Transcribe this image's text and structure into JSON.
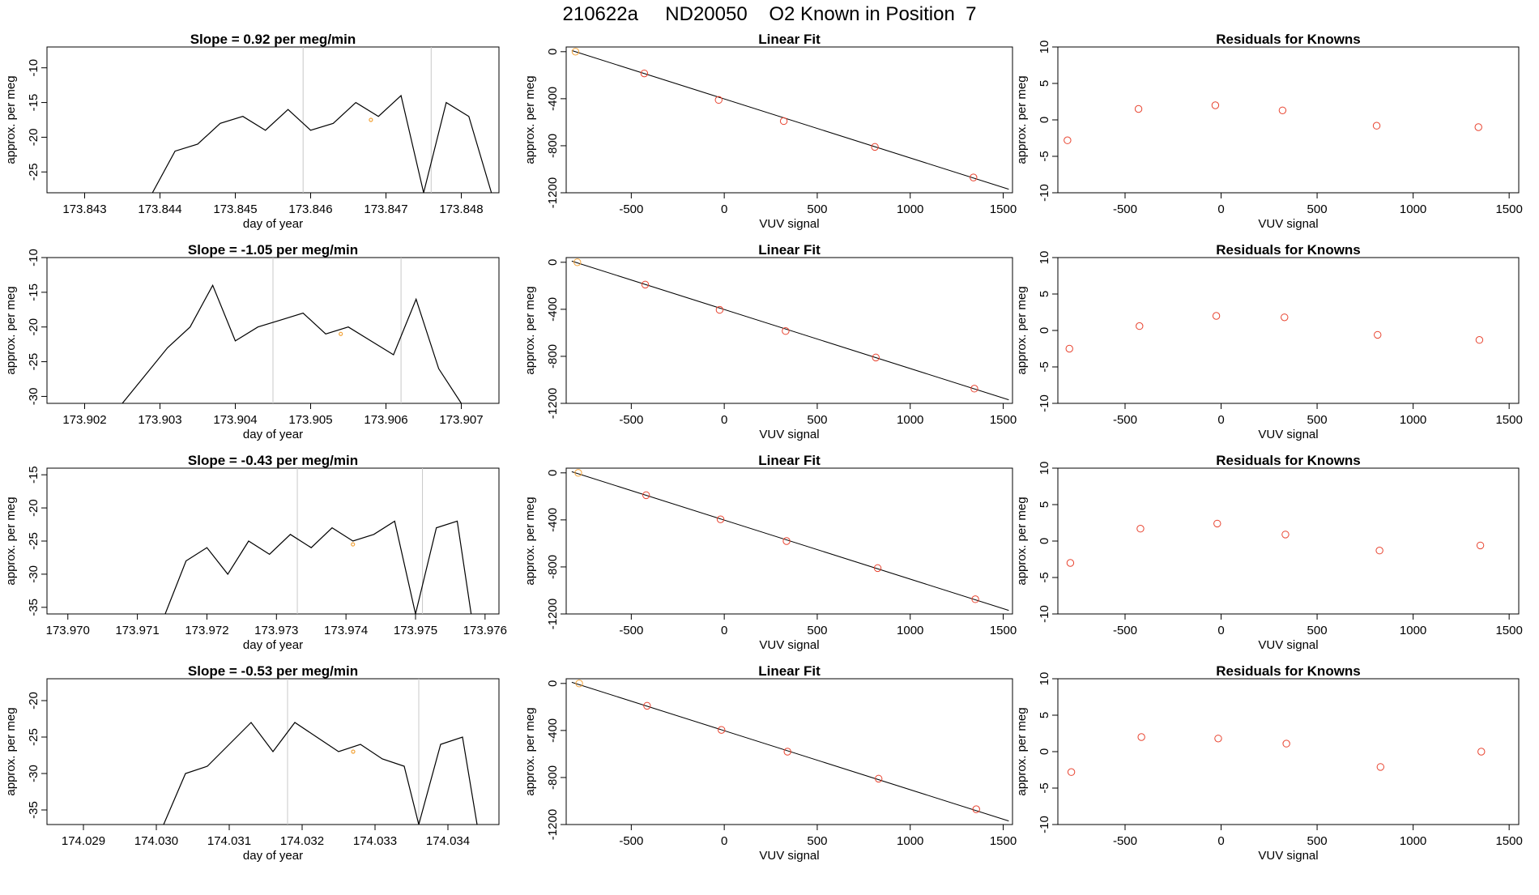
{
  "figure": {
    "title": "210622a     ND20050    O2 Known in Position  7"
  },
  "colors": {
    "trace": "#000000",
    "fit_line": "#000000",
    "marker": "#e8432f",
    "highlight": "#f2a33a",
    "vline": "#c8c8c8",
    "frame": "#000000"
  },
  "chart_data": [
    {
      "type": "line",
      "row": 0,
      "col": 0,
      "title": "Slope =  0.92  per meg/min",
      "xlabel": "day of year",
      "ylabel": "approx. per meg",
      "xlim": [
        173.8425,
        173.8485
      ],
      "ylim": [
        -28,
        -7
      ],
      "xticks": [
        173.843,
        173.844,
        173.845,
        173.846,
        173.847,
        173.848
      ],
      "xtick_labels": [
        "173.843",
        "173.844",
        "173.845",
        "173.846",
        "173.847",
        "173.848"
      ],
      "yticks": [
        -25,
        -20,
        -15,
        -10
      ],
      "vlines": [
        173.8459,
        173.8476
      ],
      "x": [
        173.8439,
        173.8442,
        173.8445,
        173.8448,
        173.8451,
        173.8454,
        173.8457,
        173.846,
        173.8463,
        173.8466,
        173.8469,
        173.8472,
        173.8475,
        173.8478,
        173.8481,
        173.8484
      ],
      "y": [
        -28,
        -22,
        -21,
        -18,
        -17,
        -19,
        -16,
        -19,
        -18,
        -15,
        -17,
        -14,
        -28,
        -15,
        -17,
        -28
      ],
      "highlight_point": [
        173.8468,
        -17.5
      ]
    },
    {
      "type": "scatter",
      "row": 0,
      "col": 1,
      "title": "Linear Fit",
      "xlabel": "VUV signal",
      "ylabel": "approx. per meg",
      "xlim": [
        -850,
        1550
      ],
      "ylim": [
        -1200,
        40
      ],
      "xticks": [
        -500,
        0,
        500,
        1000,
        1500
      ],
      "yticks": [
        0,
        -400,
        -800,
        -1200
      ],
      "x": [
        -800,
        -430,
        -30,
        320,
        810,
        1340
      ],
      "y": [
        0,
        -185,
        -410,
        -590,
        -810,
        -1070
      ],
      "fit_line": [
        [
          -820,
          10
        ],
        [
          1530,
          -1170
        ]
      ],
      "highlight_index": 0
    },
    {
      "type": "scatter",
      "row": 0,
      "col": 2,
      "title": "Residuals for Knowns",
      "xlabel": "VUV signal",
      "ylabel": "approx. per meg",
      "xlim": [
        -850,
        1550
      ],
      "ylim": [
        -10,
        10
      ],
      "xticks": [
        -500,
        0,
        500,
        1000,
        1500
      ],
      "yticks": [
        -10,
        -5,
        0,
        5,
        10
      ],
      "x": [
        -800,
        -430,
        -30,
        320,
        810,
        1340
      ],
      "y": [
        -2.8,
        1.5,
        2.0,
        1.3,
        -0.8,
        -1.0
      ]
    },
    {
      "type": "line",
      "row": 1,
      "col": 0,
      "title": "Slope =  -1.05  per meg/min",
      "xlabel": "day of year",
      "ylabel": "approx. per meg",
      "xlim": [
        173.9015,
        173.9075
      ],
      "ylim": [
        -31,
        -10
      ],
      "xticks": [
        173.902,
        173.903,
        173.904,
        173.905,
        173.906,
        173.907
      ],
      "xtick_labels": [
        "173.902",
        "173.903",
        "173.904",
        "173.905",
        "173.906",
        "173.907"
      ],
      "yticks": [
        -30,
        -25,
        -20,
        -15,
        -10
      ],
      "vlines": [
        173.9045,
        173.9062
      ],
      "x": [
        173.9025,
        173.9028,
        173.9031,
        173.9034,
        173.9037,
        173.904,
        173.9043,
        173.9046,
        173.9049,
        173.9052,
        173.9055,
        173.9058,
        173.9061,
        173.9064,
        173.9067,
        173.907
      ],
      "y": [
        -31,
        -27,
        -23,
        -20,
        -14,
        -22,
        -20,
        -19,
        -18,
        -21,
        -20,
        -22,
        -24,
        -16,
        -26,
        -31
      ],
      "highlight_point": [
        173.9054,
        -21
      ]
    },
    {
      "type": "scatter",
      "row": 1,
      "col": 1,
      "title": "Linear Fit",
      "xlabel": "VUV signal",
      "ylabel": "approx. per meg",
      "xlim": [
        -850,
        1550
      ],
      "ylim": [
        -1200,
        40
      ],
      "xticks": [
        -500,
        0,
        500,
        1000,
        1500
      ],
      "yticks": [
        0,
        -400,
        -800,
        -1200
      ],
      "x": [
        -790,
        -425,
        -25,
        330,
        815,
        1345
      ],
      "y": [
        0,
        -190,
        -405,
        -585,
        -810,
        -1075
      ],
      "fit_line": [
        [
          -820,
          10
        ],
        [
          1530,
          -1170
        ]
      ],
      "highlight_index": 0
    },
    {
      "type": "scatter",
      "row": 1,
      "col": 2,
      "title": "Residuals for Knowns",
      "xlabel": "VUV signal",
      "ylabel": "approx. per meg",
      "xlim": [
        -850,
        1550
      ],
      "ylim": [
        -10,
        10
      ],
      "xticks": [
        -500,
        0,
        500,
        1000,
        1500
      ],
      "yticks": [
        -10,
        -5,
        0,
        5,
        10
      ],
      "x": [
        -790,
        -425,
        -25,
        330,
        815,
        1345
      ],
      "y": [
        -2.5,
        0.6,
        2.0,
        1.8,
        -0.6,
        -1.3
      ]
    },
    {
      "type": "line",
      "row": 2,
      "col": 0,
      "title": "Slope =  -0.43  per meg/min",
      "xlabel": "day of year",
      "ylabel": "approx. per meg",
      "xlim": [
        173.9697,
        173.9762
      ],
      "ylim": [
        -36,
        -14
      ],
      "xticks": [
        173.97,
        173.971,
        173.972,
        173.973,
        173.974,
        173.975,
        173.976
      ],
      "xtick_labels": [
        "173.970",
        "173.971",
        "173.972",
        "173.973",
        "173.974",
        "173.975",
        "173.976"
      ],
      "yticks": [
        -35,
        -30,
        -25,
        -20,
        -15
      ],
      "vlines": [
        173.9733,
        173.9751
      ],
      "x": [
        173.9714,
        173.9717,
        173.972,
        173.9723,
        173.9726,
        173.9729,
        173.9732,
        173.9735,
        173.9738,
        173.9741,
        173.9744,
        173.9747,
        173.975,
        173.9753,
        173.9756,
        173.9758
      ],
      "y": [
        -36,
        -28,
        -26,
        -30,
        -25,
        -27,
        -24,
        -26,
        -23,
        -25,
        -24,
        -22,
        -36,
        -23,
        -22,
        -36
      ],
      "highlight_point": [
        173.9741,
        -25.5
      ]
    },
    {
      "type": "scatter",
      "row": 2,
      "col": 1,
      "title": "Linear Fit",
      "xlabel": "VUV signal",
      "ylabel": "approx. per meg",
      "xlim": [
        -850,
        1550
      ],
      "ylim": [
        -1200,
        40
      ],
      "xticks": [
        -500,
        0,
        500,
        1000,
        1500
      ],
      "yticks": [
        0,
        -400,
        -800,
        -1200
      ],
      "x": [
        -785,
        -420,
        -20,
        335,
        825,
        1350
      ],
      "y": [
        0,
        -190,
        -395,
        -580,
        -810,
        -1075
      ],
      "fit_line": [
        [
          -820,
          10
        ],
        [
          1530,
          -1170
        ]
      ],
      "highlight_index": 0
    },
    {
      "type": "scatter",
      "row": 2,
      "col": 2,
      "title": "Residuals for Knowns",
      "xlabel": "VUV signal",
      "ylabel": "approx. per meg",
      "xlim": [
        -850,
        1550
      ],
      "ylim": [
        -10,
        10
      ],
      "xticks": [
        -500,
        0,
        500,
        1000,
        1500
      ],
      "yticks": [
        -10,
        -5,
        0,
        5,
        10
      ],
      "x": [
        -785,
        -420,
        -20,
        335,
        825,
        1350
      ],
      "y": [
        -3.0,
        1.7,
        2.4,
        0.9,
        -1.3,
        -0.6
      ]
    },
    {
      "type": "line",
      "row": 3,
      "col": 0,
      "title": "Slope =  -0.53  per meg/min",
      "xlabel": "day of year",
      "ylabel": "approx. per meg",
      "xlim": [
        174.0285,
        174.0347
      ],
      "ylim": [
        -37,
        -17
      ],
      "xticks": [
        174.029,
        174.03,
        174.031,
        174.032,
        174.033,
        174.034
      ],
      "xtick_labels": [
        "174.029",
        "174.030",
        "174.031",
        "174.032",
        "174.033",
        "174.034"
      ],
      "yticks": [
        -35,
        -30,
        -25,
        -20
      ],
      "vlines": [
        174.0318,
        174.0336
      ],
      "x": [
        174.0301,
        174.0304,
        174.0307,
        174.031,
        174.0313,
        174.0316,
        174.0319,
        174.0322,
        174.0325,
        174.0328,
        174.0331,
        174.0334,
        174.0336,
        174.0339,
        174.0342,
        174.0344
      ],
      "y": [
        -37,
        -30,
        -29,
        -26,
        -23,
        -27,
        -23,
        -25,
        -27,
        -26,
        -28,
        -29,
        -37,
        -26,
        -25,
        -37
      ],
      "highlight_point": [
        174.0327,
        -27
      ]
    },
    {
      "type": "scatter",
      "row": 3,
      "col": 1,
      "title": "Linear Fit",
      "xlabel": "VUV signal",
      "ylabel": "approx. per meg",
      "xlim": [
        -850,
        1550
      ],
      "ylim": [
        -1200,
        40
      ],
      "xticks": [
        -500,
        0,
        500,
        1000,
        1500
      ],
      "yticks": [
        0,
        -400,
        -800,
        -1200
      ],
      "x": [
        -780,
        -415,
        -15,
        340,
        830,
        1355
      ],
      "y": [
        0,
        -190,
        -395,
        -580,
        -810,
        -1070
      ],
      "fit_line": [
        [
          -820,
          10
        ],
        [
          1530,
          -1170
        ]
      ],
      "highlight_index": 0
    },
    {
      "type": "scatter",
      "row": 3,
      "col": 2,
      "title": "Residuals for Knowns",
      "xlabel": "VUV signal",
      "ylabel": "approx. per meg",
      "xlim": [
        -850,
        1550
      ],
      "ylim": [
        -10,
        10
      ],
      "xticks": [
        -500,
        0,
        500,
        1000,
        1500
      ],
      "yticks": [
        -10,
        -5,
        0,
        5,
        10
      ],
      "x": [
        -780,
        -415,
        -15,
        340,
        830,
        1355
      ],
      "y": [
        -2.8,
        2.0,
        1.8,
        1.1,
        -2.1,
        0.0
      ]
    }
  ]
}
